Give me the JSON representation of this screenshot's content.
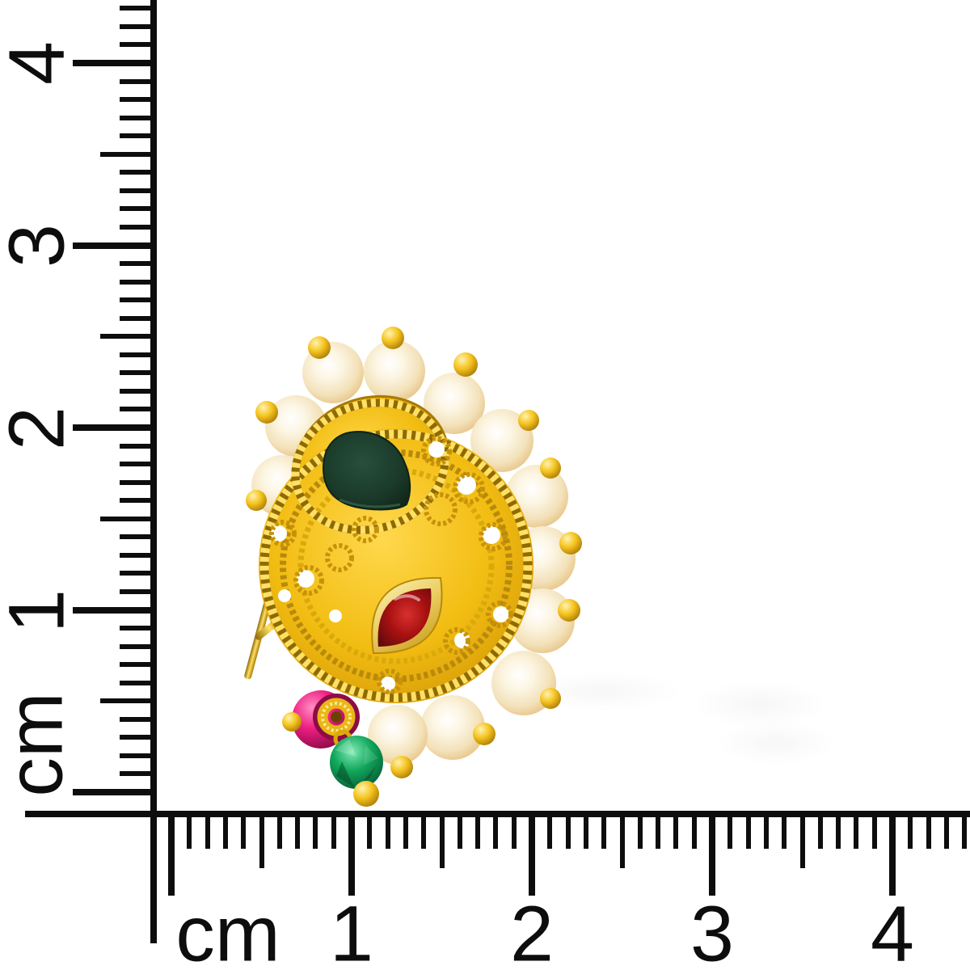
{
  "image": {
    "type": "product-photo",
    "subject": "Gold filigree paisley stud with pearl halo, dark green enamel paisley, red marquise stone, magenta and emerald drop beads, shown against white with centimeter rulers on the left and bottom edges"
  },
  "rulers": {
    "unit": "cm",
    "vertical": {
      "side": "left",
      "labels": [
        "4",
        "3",
        "2",
        "1",
        "cm"
      ]
    },
    "horizontal": {
      "side": "bottom",
      "labels": [
        "cm",
        "1",
        "2",
        "3",
        "4"
      ]
    }
  },
  "jewelry": {
    "pearl_count": 13,
    "components": [
      "gold filigree disc pendant",
      "dark green enamel paisley",
      "red marquise stone in smooth gold bezel",
      "halo of cream pearls with small gold tip beads",
      "gold ear pin",
      "magenta rondelle bead with gold spiral cap",
      "green faceted glass bead",
      "small gold drop beads"
    ]
  },
  "colors": {
    "background": "#ffffff",
    "ruler": "#0d0d0d",
    "gold": "#edb90f",
    "gold-highlight": "#ffe064",
    "gold-deep": "#a87a04",
    "pearl": "#f4e6c4",
    "enamel-green": "#1b3a2a",
    "ruby-red": "#a81111",
    "bezel-gold": "#e9c94e",
    "magenta": "#ec1b80",
    "emerald": "#0fa558"
  }
}
